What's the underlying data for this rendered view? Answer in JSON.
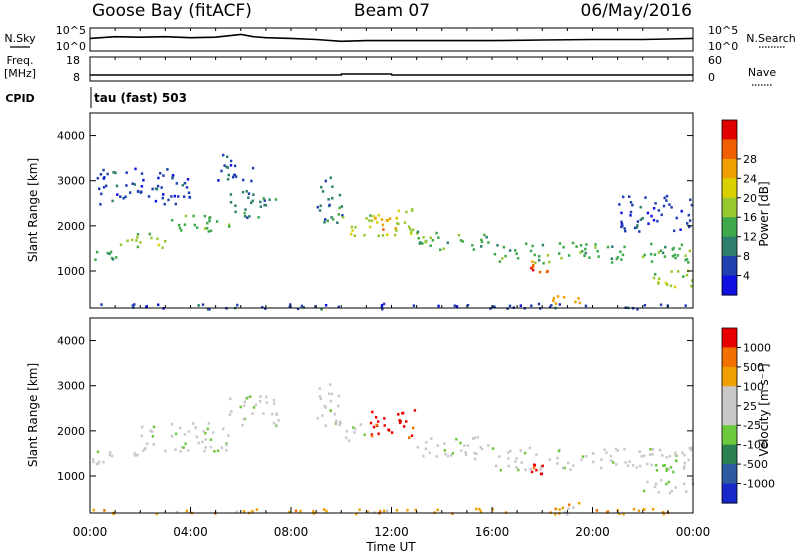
{
  "header": {
    "station": "Goose Bay (fitACF)",
    "beam": "Beam 07",
    "date": "06/May/2016"
  },
  "left_labels": {
    "nsky": "N.Sky",
    "freq": "Freq.",
    "freq_unit": "[MHz]",
    "cpid": "CPID",
    "cpid_value": "tau (fast) 503"
  },
  "right_labels": {
    "nsearch": "N.Search",
    "nave": "Nave"
  },
  "chart_data": [
    {
      "type": "line",
      "panel": "noise",
      "left_ticks": [
        "10^5",
        "10^0"
      ],
      "right_ticks": [
        "10^5",
        "10^0"
      ],
      "series": [
        {
          "name": "N.Sky",
          "style": "solid",
          "x": [
            0,
            1,
            2,
            3,
            4,
            5,
            6,
            6.5,
            7,
            8,
            9,
            10,
            11,
            12,
            14,
            16,
            18,
            20,
            22,
            23,
            24
          ],
          "y": [
            0.55,
            0.62,
            0.6,
            0.62,
            0.58,
            0.6,
            0.72,
            0.62,
            0.58,
            0.55,
            0.5,
            0.42,
            0.45,
            0.45,
            0.45,
            0.45,
            0.48,
            0.5,
            0.5,
            0.52,
            0.55
          ]
        },
        {
          "name": "N.Search",
          "style": "dotted",
          "x": [],
          "y": []
        }
      ]
    },
    {
      "type": "line",
      "panel": "frequency",
      "left_ticks": [
        "18",
        "8"
      ],
      "right_ticks": [
        "60",
        "0"
      ],
      "series": [
        {
          "name": "Freq.",
          "x": [
            0,
            10,
            10.01,
            12,
            12.01,
            24
          ],
          "y": [
            10.5,
            10.5,
            10.9,
            10.9,
            10.5,
            10.5
          ]
        },
        {
          "name": "Nave",
          "style": "dotted",
          "x": [],
          "y": []
        }
      ]
    },
    {
      "type": "heatmap",
      "panel": "power",
      "ylabel": "Slant Range [km]",
      "yticks": [
        "1000",
        "2000",
        "3000",
        "4000"
      ],
      "colorbar_label": "Power [dB]",
      "colorbar_ticks": [
        "4",
        "8",
        "12",
        "16",
        "20",
        "24",
        "28"
      ],
      "colors": [
        "#1010e0",
        "#2040b0",
        "#2e7e6e",
        "#3ea84a",
        "#98c830",
        "#d8d000",
        "#f0a000",
        "#f06000",
        "#e00000"
      ],
      "bands": [
        {
          "t0": 0.0,
          "t1": 1.0,
          "r0": 1250,
          "r1": 1500,
          "level": 3
        },
        {
          "t0": 1.0,
          "t1": 3.0,
          "r0": 1500,
          "r1": 1850,
          "level": 4
        },
        {
          "t0": 3.0,
          "t1": 5.5,
          "r0": 1850,
          "r1": 2250,
          "level": 3
        },
        {
          "t0": 5.5,
          "t1": 7.5,
          "r0": 2200,
          "r1": 2800,
          "level": 2
        },
        {
          "t0": 0.2,
          "t1": 4.0,
          "r0": 2500,
          "r1": 3300,
          "level": 1
        },
        {
          "t0": 5.0,
          "t1": 6.5,
          "r0": 3000,
          "r1": 3600,
          "level": 1
        },
        {
          "t0": 9.0,
          "t1": 10.0,
          "r0": 2000,
          "r1": 3100,
          "level": 2
        },
        {
          "t0": 10.0,
          "t1": 13.0,
          "r0": 1800,
          "r1": 2400,
          "level": 4
        },
        {
          "t0": 11.3,
          "t1": 12.5,
          "r0": 1900,
          "r1": 2200,
          "level": 6
        },
        {
          "t0": 13.0,
          "t1": 16.0,
          "r0": 1450,
          "r1": 1900,
          "level": 3
        },
        {
          "t0": 16.0,
          "t1": 24.0,
          "r0": 1200,
          "r1": 1650,
          "level": 3
        },
        {
          "t0": 22.0,
          "t1": 24.0,
          "r0": 650,
          "r1": 1050,
          "level": 4
        },
        {
          "t0": 18.3,
          "t1": 19.5,
          "r0": 280,
          "r1": 480,
          "level": 6
        },
        {
          "t0": 17.5,
          "t1": 18.2,
          "r0": 950,
          "r1": 1250,
          "level": 7
        },
        {
          "t0": 21.0,
          "t1": 24.0,
          "r0": 1900,
          "r1": 2700,
          "level": 1
        },
        {
          "t0": 0.0,
          "t1": 24.0,
          "r0": 180,
          "r1": 300,
          "level": 1
        }
      ]
    },
    {
      "type": "heatmap",
      "panel": "velocity",
      "xlabel": "Time UT",
      "ylabel": "Slant Range [km]",
      "xticks": [
        "00:00",
        "04:00",
        "08:00",
        "12:00",
        "16:00",
        "20:00",
        "00:00"
      ],
      "yticks": [
        "1000",
        "2000",
        "3000",
        "4000"
      ],
      "colorbar_label": "Velocity [m s⁻¹]",
      "colorbar_ticks": [
        "1000",
        "500",
        "100",
        "25",
        "-25",
        "-100",
        "-500",
        "-1000"
      ],
      "colors": [
        "#1828c8",
        "#2c5aa0",
        "#2a8050",
        "#6cc83c",
        "#c8c8c8",
        "#c8c8c8",
        "#f0a000",
        "#f07000",
        "#e80000"
      ],
      "bands": [
        {
          "t0": 0.0,
          "t1": 2.0,
          "r0": 1250,
          "r1": 1600,
          "level": 4
        },
        {
          "t0": 2.0,
          "t1": 5.5,
          "r0": 1550,
          "r1": 2200,
          "level": 4
        },
        {
          "t0": 5.5,
          "t1": 7.5,
          "r0": 2100,
          "r1": 2800,
          "level": 4
        },
        {
          "t0": 9.0,
          "t1": 10.0,
          "r0": 2000,
          "r1": 3100,
          "level": 4
        },
        {
          "t0": 10.0,
          "t1": 11.0,
          "r0": 1800,
          "r1": 2200,
          "level": 4
        },
        {
          "t0": 11.0,
          "t1": 13.0,
          "r0": 1850,
          "r1": 2500,
          "level": 8
        },
        {
          "t0": 13.0,
          "t1": 16.0,
          "r0": 1400,
          "r1": 1900,
          "level": 4
        },
        {
          "t0": 16.0,
          "t1": 24.0,
          "r0": 1150,
          "r1": 1650,
          "level": 4
        },
        {
          "t0": 22.0,
          "t1": 24.0,
          "r0": 650,
          "r1": 1050,
          "level": 4
        },
        {
          "t0": 22.5,
          "t1": 23.3,
          "r0": 1100,
          "r1": 1500,
          "level": 3
        },
        {
          "t0": 18.3,
          "t1": 19.5,
          "r0": 280,
          "r1": 480,
          "level": 6
        },
        {
          "t0": 17.5,
          "t1": 18.0,
          "r0": 1050,
          "r1": 1300,
          "level": 8
        },
        {
          "t0": 0.0,
          "t1": 24.0,
          "r0": 180,
          "r1": 300,
          "level": 6
        }
      ]
    }
  ]
}
